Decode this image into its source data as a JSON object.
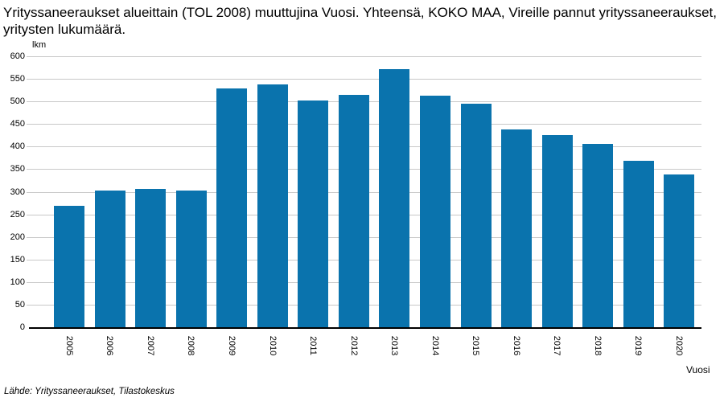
{
  "title": "Yrityssaneeraukset alueittain (TOL 2008) muuttujina Vuosi. Yhteensä, KOKO MAA, Vireille pannut yrityssaneeraukset, yritysten lukumäärä.",
  "y_axis_unit": "lkm",
  "x_axis_label": "Vuosi",
  "source": "Lähde: Yrityssaneeraukset, Tilastokeskus",
  "colors": {
    "bar": "#0a73ad",
    "gridline": "#c8c8c8",
    "axis": "#000000",
    "text": "#000000"
  },
  "chart_data": {
    "type": "bar",
    "title": "Yrityssaneeraukset alueittain (TOL 2008) muuttujina Vuosi. Yhteensä, KOKO MAA, Vireille pannut yrityssaneeraukset, yritysten lukumäärä.",
    "categories": [
      "2005",
      "2006",
      "2007",
      "2008",
      "2009",
      "2010",
      "2011",
      "2012",
      "2013",
      "2014",
      "2015",
      "2016",
      "2017",
      "2018",
      "2019",
      "2020"
    ],
    "values": [
      269,
      302,
      306,
      303,
      528,
      537,
      502,
      515,
      571,
      512,
      495,
      438,
      425,
      406,
      368,
      339
    ],
    "xlabel": "Vuosi",
    "ylabel": "lkm",
    "ylim": [
      0,
      600
    ],
    "ytick_step": 50,
    "grid": true,
    "legend_position": "none"
  }
}
